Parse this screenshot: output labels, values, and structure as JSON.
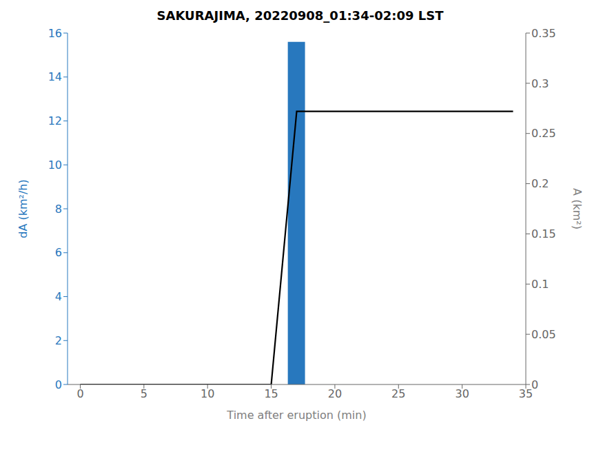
{
  "chart_data": {
    "type": "bar",
    "title": "SAKURAJIMA, 20220908_01:34-02:09 LST",
    "xlabel": "Time after eruption (min)",
    "ylabel": "dA (km²/h)",
    "y2label": "A (km²)",
    "series": [
      {
        "type": "bar",
        "color": "#2878be",
        "x": [
          17.0
        ],
        "values": [
          15.6
        ]
      },
      {
        "type": "line",
        "color": "#000000",
        "axis": "y2",
        "x": [
          0,
          15.0,
          17.0,
          18.5,
          34.0
        ],
        "values": [
          0,
          0,
          0.272,
          0.272,
          0.272
        ]
      }
    ],
    "xlim": [
      -1,
      35
    ],
    "xticks": [
      0,
      5,
      10,
      15,
      20,
      25,
      30,
      35
    ],
    "ylim": [
      0,
      16
    ],
    "yticks": [
      0,
      2,
      4,
      6,
      8,
      10,
      12,
      14,
      16
    ],
    "y2lim": [
      0,
      0.35
    ],
    "y2ticks": [
      0,
      0.05,
      0.1,
      0.15,
      0.2,
      0.25,
      0.3,
      0.35
    ],
    "grid": false
  }
}
